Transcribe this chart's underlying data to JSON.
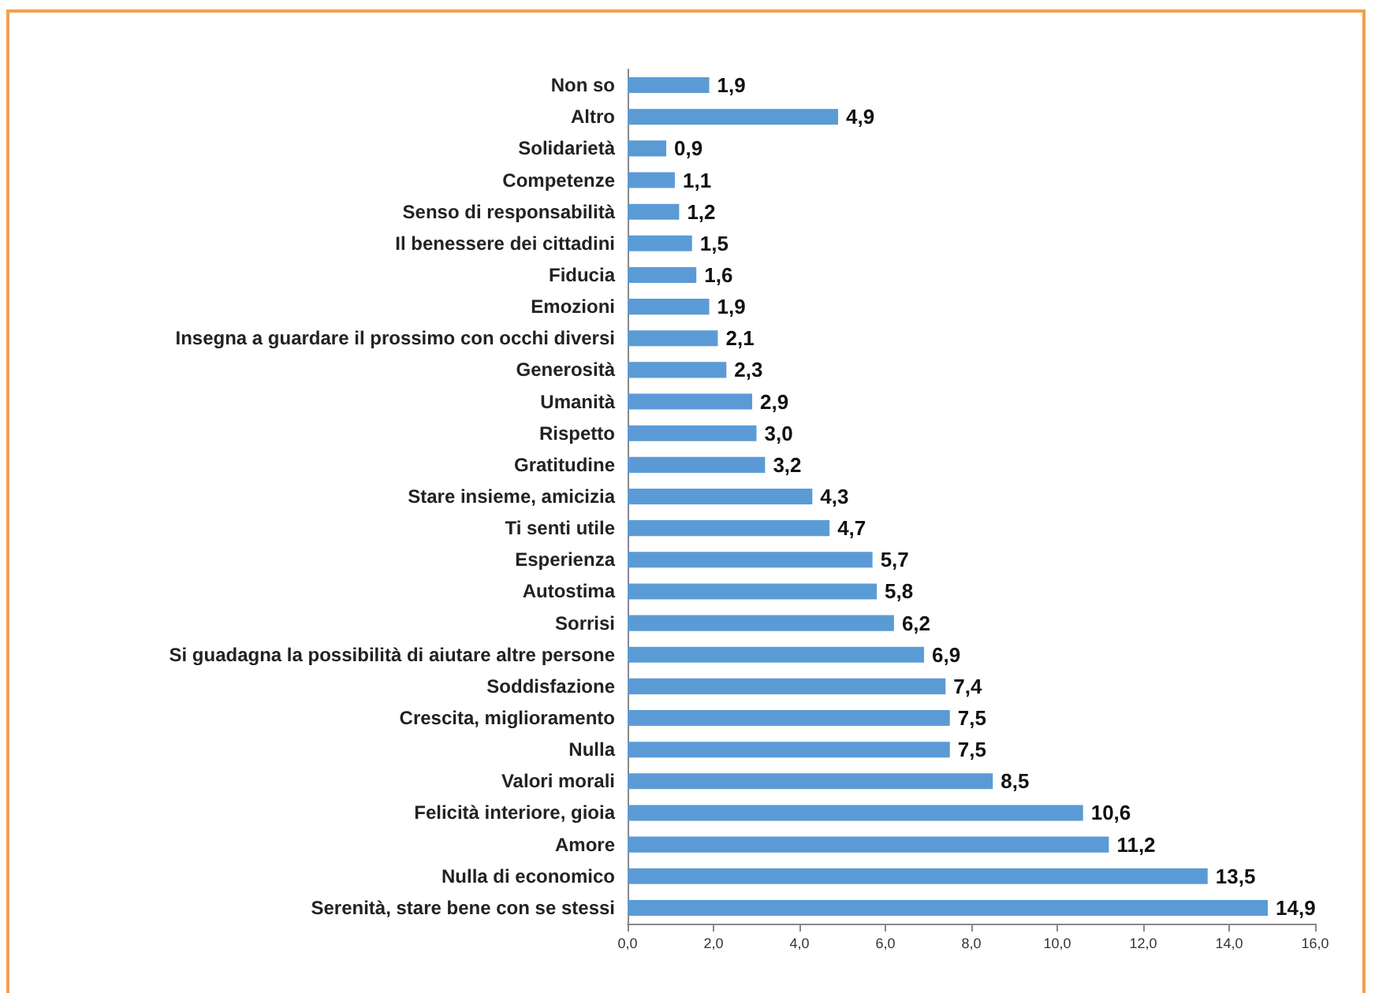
{
  "chart_data": {
    "type": "bar",
    "orientation": "horizontal",
    "categories": [
      "Non so",
      "Altro",
      "Solidarietà",
      "Competenze",
      "Senso di responsabilità",
      "Il benessere dei cittadini",
      "Fiducia",
      "Emozioni",
      "Insegna a guardare il prossimo con occhi diversi",
      "Generosità",
      "Umanità",
      "Rispetto",
      "Gratitudine",
      "Stare insieme, amicizia",
      "Ti senti utile",
      "Esperienza",
      "Autostima",
      "Sorrisi",
      "Si guadagna la possibilità di aiutare altre persone",
      "Soddisfazione",
      "Crescita, miglioramento",
      "Nulla",
      "Valori morali",
      "Felicità interiore, gioia",
      "Amore",
      "Nulla di economico",
      "Serenità, stare bene con se stessi"
    ],
    "values": [
      1.9,
      4.9,
      0.9,
      1.1,
      1.2,
      1.5,
      1.6,
      1.9,
      2.1,
      2.3,
      2.9,
      3.0,
      3.2,
      4.3,
      4.7,
      5.7,
      5.8,
      6.2,
      6.9,
      7.4,
      7.5,
      7.5,
      8.5,
      10.6,
      11.2,
      13.5,
      14.9
    ],
    "value_labels": [
      "1,9",
      "4,9",
      "0,9",
      "1,1",
      "1,2",
      "1,5",
      "1,6",
      "1,9",
      "2,1",
      "2,3",
      "2,9",
      "3,0",
      "3,2",
      "4,3",
      "4,7",
      "5,7",
      "5,8",
      "6,2",
      "6,9",
      "7,4",
      "7,5",
      "7,5",
      "8,5",
      "10,6",
      "11,2",
      "13,5",
      "14,9"
    ],
    "color": "#5b9bd5",
    "xlim": [
      0,
      16
    ],
    "xticks": [
      {
        "value": 0,
        "label": "0,0"
      },
      {
        "value": 2,
        "label": "2,0"
      },
      {
        "value": 4,
        "label": "4,0"
      },
      {
        "value": 6,
        "label": "6,0"
      },
      {
        "value": 8,
        "label": "8,0"
      },
      {
        "value": 10,
        "label": "10,0"
      },
      {
        "value": 12,
        "label": "12,0"
      },
      {
        "value": 14,
        "label": "14,0"
      },
      {
        "value": 16,
        "label": "16,0"
      }
    ],
    "grid": false
  }
}
